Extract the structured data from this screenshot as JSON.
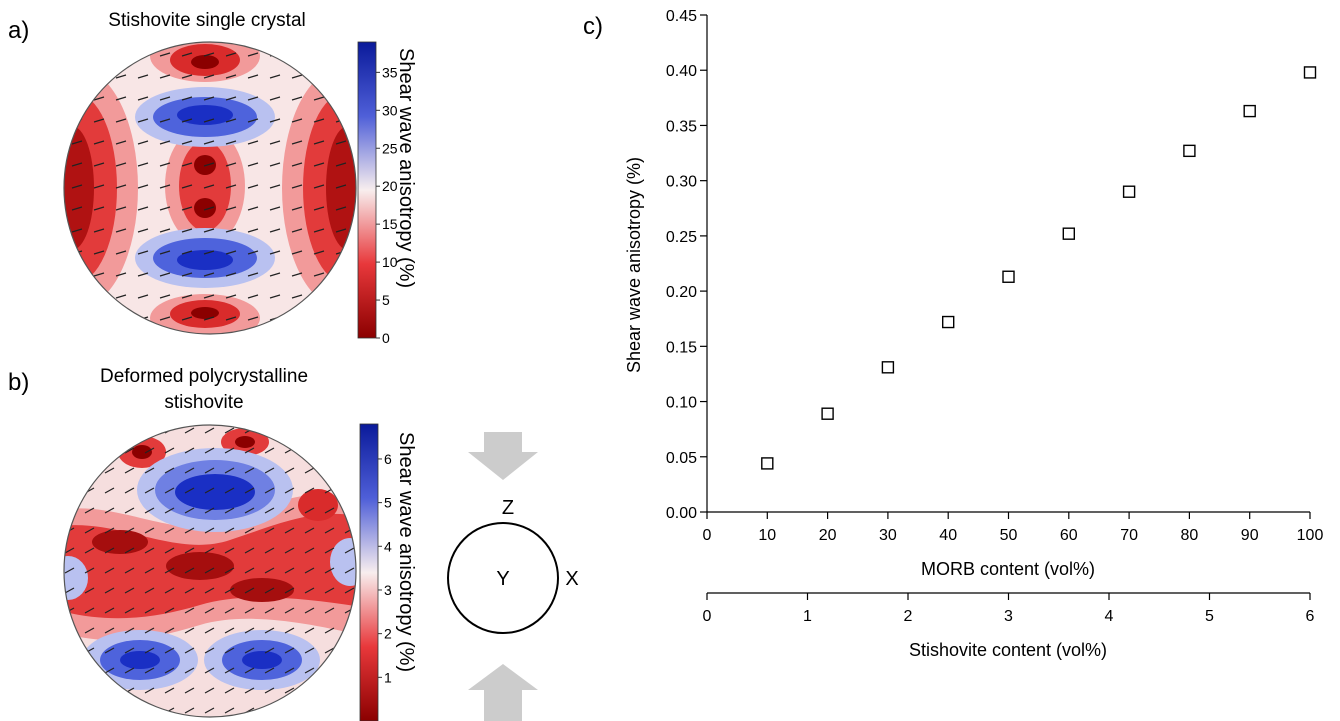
{
  "panel_a": {
    "letter": "a)",
    "title": "Stishovite single crystal",
    "colorbar_label": "Shear wave anisotropy  (%)",
    "colorbar_ticks": [
      "0",
      "5",
      "10",
      "15",
      "20",
      "25",
      "30",
      "35"
    ],
    "colorbar_range": [
      0,
      39
    ]
  },
  "panel_b": {
    "letter": "b)",
    "title_line1": "Deformed polycrystalline",
    "title_line2": "stishovite",
    "colorbar_label": "Shear wave anisotropy  (%)",
    "colorbar_ticks": [
      "1",
      "2",
      "3",
      "4",
      "5",
      "6"
    ],
    "colorbar_range": [
      0,
      6.8
    ],
    "axes": {
      "z": "Z",
      "y": "Y",
      "x": "X"
    }
  },
  "colors": {
    "low": "#8b0000",
    "mid": "#f7e9e9",
    "high": "#0a1a9a",
    "arrow": "#cccccc"
  },
  "chart_data": {
    "type": "scatter",
    "letter": "c)",
    "title": "",
    "xlabel": "MORB content (vol%)",
    "ylabel": "Shear wave anisotropy (%)",
    "xlim": [
      0,
      100
    ],
    "ylim": [
      0,
      0.45
    ],
    "x_ticks": [
      "0",
      "10",
      "20",
      "30",
      "40",
      "50",
      "60",
      "70",
      "80",
      "90",
      "100"
    ],
    "y_ticks": [
      "0.00",
      "0.05",
      "0.10",
      "0.15",
      "0.20",
      "0.25",
      "0.30",
      "0.35",
      "0.40",
      "0.45"
    ],
    "secondary_xlabel": "Stishovite content (vol%)",
    "secondary_xlim": [
      0,
      6
    ],
    "secondary_x_ticks": [
      "0",
      "1",
      "2",
      "3",
      "4",
      "5",
      "6"
    ],
    "x": [
      10,
      20,
      30,
      40,
      50,
      60,
      70,
      80,
      90,
      100
    ],
    "y": [
      0.044,
      0.089,
      0.131,
      0.172,
      0.213,
      0.252,
      0.29,
      0.327,
      0.363,
      0.398
    ],
    "marker": "open-square",
    "grid": false
  }
}
